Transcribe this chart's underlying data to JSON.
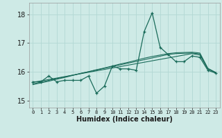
{
  "xlabel": "Humidex (Indice chaleur)",
  "background_color": "#ceeae6",
  "grid_color": "#b2d8d4",
  "line_color": "#1a6b5a",
  "xlim": [
    -0.5,
    23.5
  ],
  "ylim": [
    14.75,
    18.4
  ],
  "yticks": [
    15,
    16,
    17,
    18
  ],
  "xtick_labels": [
    "0",
    "1",
    "2",
    "3",
    "4",
    "5",
    "6",
    "7",
    "8",
    "9",
    "10",
    "11",
    "12",
    "13",
    "14",
    "15",
    "16",
    "17",
    "18",
    "19",
    "20",
    "21",
    "22",
    "23"
  ],
  "main": [
    15.65,
    15.65,
    15.85,
    15.65,
    15.7,
    15.7,
    15.7,
    15.85,
    15.25,
    15.5,
    16.2,
    16.1,
    16.1,
    16.05,
    17.4,
    18.05,
    16.85,
    16.6,
    16.35,
    16.35,
    16.55,
    16.5,
    16.05,
    15.95
  ],
  "line1": [
    15.63,
    15.68,
    15.73,
    15.78,
    15.83,
    15.88,
    15.93,
    15.98,
    16.03,
    16.08,
    16.13,
    16.18,
    16.23,
    16.28,
    16.33,
    16.38,
    16.43,
    16.48,
    16.53,
    16.58,
    16.63,
    16.58,
    16.1,
    15.97
  ],
  "line2": [
    15.58,
    15.64,
    15.7,
    15.76,
    15.82,
    15.88,
    15.94,
    16.0,
    16.06,
    16.12,
    16.18,
    16.24,
    16.3,
    16.36,
    16.42,
    16.48,
    16.54,
    16.6,
    16.63,
    16.64,
    16.65,
    16.62,
    16.1,
    15.97
  ],
  "line3": [
    15.55,
    15.61,
    15.67,
    15.74,
    15.8,
    15.87,
    15.94,
    16.0,
    16.07,
    16.13,
    16.2,
    16.27,
    16.33,
    16.4,
    16.47,
    16.53,
    16.58,
    16.63,
    16.66,
    16.67,
    16.68,
    16.65,
    16.12,
    15.97
  ]
}
